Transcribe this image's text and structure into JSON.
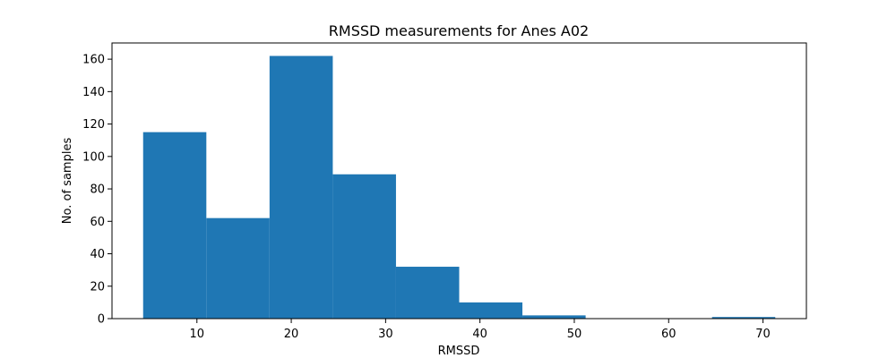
{
  "chart_data": {
    "type": "bar",
    "title": "RMSSD measurements for Anes A02",
    "xlabel": "RMSSD",
    "ylabel": "No. of samples",
    "bins": [
      {
        "x0": 4.3,
        "x1": 11.0,
        "count": 115
      },
      {
        "x0": 11.0,
        "x1": 17.7,
        "count": 62
      },
      {
        "x0": 17.7,
        "x1": 24.4,
        "count": 162
      },
      {
        "x0": 24.4,
        "x1": 31.1,
        "count": 89
      },
      {
        "x0": 31.1,
        "x1": 37.8,
        "count": 32
      },
      {
        "x0": 37.8,
        "x1": 44.5,
        "count": 10
      },
      {
        "x0": 44.5,
        "x1": 51.2,
        "count": 2
      },
      {
        "x0": 51.2,
        "x1": 57.9,
        "count": 0
      },
      {
        "x0": 57.9,
        "x1": 64.6,
        "count": 0
      },
      {
        "x0": 64.6,
        "x1": 71.3,
        "count": 1
      }
    ],
    "xlim": [
      1.0,
      74.6
    ],
    "ylim": [
      0,
      170
    ],
    "xticks": [
      10,
      20,
      30,
      40,
      50,
      60,
      70
    ],
    "yticks": [
      0,
      20,
      40,
      60,
      80,
      100,
      120,
      140,
      160
    ],
    "bar_color": "#1f77b4",
    "grid": false,
    "legend": "none"
  }
}
